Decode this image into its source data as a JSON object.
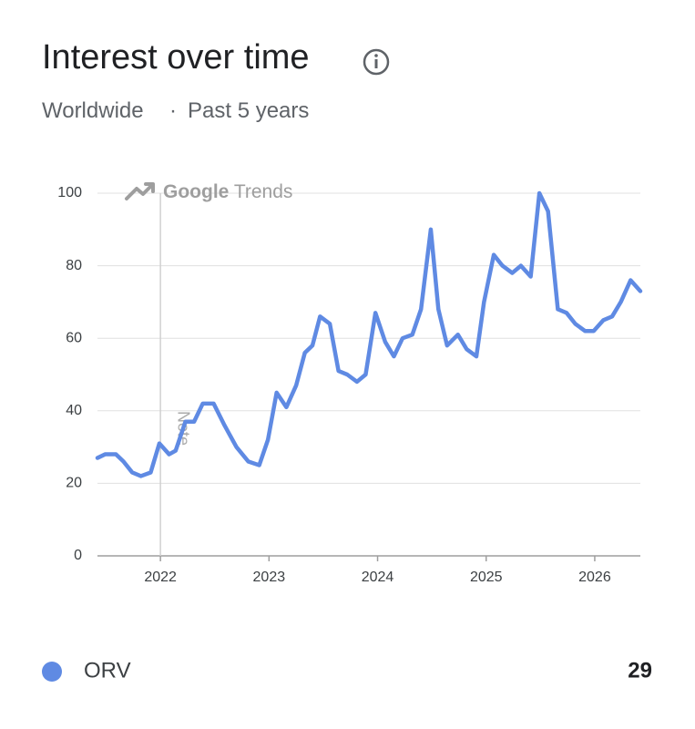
{
  "title": "Interest over time",
  "subtitle": {
    "region": "Worldwide",
    "separator": "·",
    "period": "Past 5 years"
  },
  "chart_data": {
    "type": "line",
    "watermark": {
      "brand": "Google",
      "product": "Trends"
    },
    "annotations": [
      {
        "x": 2022,
        "label": "Note"
      }
    ],
    "x": [
      2021.42,
      2021.49,
      2021.59,
      2021.66,
      2021.74,
      2021.82,
      2021.91,
      2021.99,
      2022.08,
      2022.14,
      2022.23,
      2022.31,
      2022.39,
      2022.49,
      2022.59,
      2022.7,
      2022.81,
      2022.91,
      2022.99,
      2023.07,
      2023.16,
      2023.25,
      2023.33,
      2023.4,
      2023.47,
      2023.56,
      2023.64,
      2023.72,
      2023.81,
      2023.89,
      2023.98,
      2024.07,
      2024.15,
      2024.23,
      2024.32,
      2024.4,
      2024.49,
      2024.56,
      2024.64,
      2024.74,
      2024.82,
      2024.91,
      2024.98,
      2025.07,
      2025.15,
      2025.24,
      2025.32,
      2025.41,
      2025.49,
      2025.57,
      2025.66,
      2025.74,
      2025.82,
      2025.91,
      2025.99,
      2026.08,
      2026.16,
      2026.24,
      2026.33,
      2026.42
    ],
    "series": [
      {
        "name": "ORV",
        "color": "#5f8ae3",
        "legend_value": 29,
        "values": [
          27,
          28,
          28,
          26,
          23,
          22,
          23,
          31,
          28,
          29,
          37,
          37,
          42,
          42,
          36,
          30,
          26,
          25,
          32,
          45,
          41,
          47,
          56,
          58,
          66,
          64,
          51,
          50,
          48,
          50,
          67,
          59,
          55,
          60,
          61,
          68,
          90,
          68,
          58,
          61,
          57,
          55,
          70,
          83,
          80,
          78,
          80,
          77,
          100,
          95,
          68,
          67,
          64,
          62,
          62,
          65,
          66,
          70,
          76,
          73
        ]
      }
    ],
    "xlim": [
      2021.42,
      2026.42
    ],
    "xticks": [
      2022,
      2023,
      2024,
      2025,
      2026
    ],
    "ylim": [
      0,
      100
    ],
    "yticks": [
      0,
      20,
      40,
      60,
      80,
      100
    ],
    "grid": true
  }
}
